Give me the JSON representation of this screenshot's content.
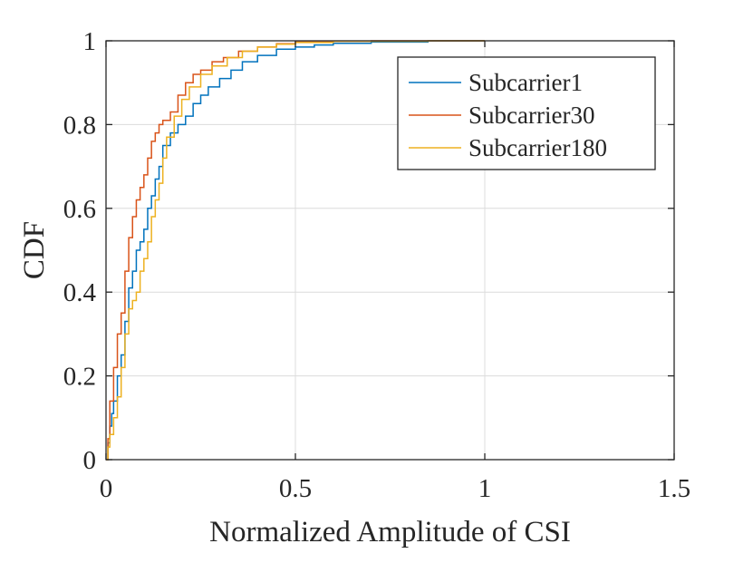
{
  "chart_data": {
    "type": "line",
    "step": true,
    "title": "",
    "xlabel": "Normalized Amplitude of CSI",
    "ylabel": "CDF",
    "xlim": [
      0,
      1.5
    ],
    "ylim": [
      0,
      1
    ],
    "xticks": [
      0,
      0.5,
      1,
      1.5
    ],
    "xtick_labels": [
      "0",
      "0.5",
      "1",
      "1.5"
    ],
    "yticks": [
      0,
      0.2,
      0.4,
      0.6,
      0.8,
      1
    ],
    "ytick_labels": [
      "0",
      "0.2",
      "0.4",
      "0.6",
      "0.8",
      "1"
    ],
    "grid": true,
    "legend_position": "top-right",
    "series": [
      {
        "name": "Subcarrier1",
        "color": "#0072BD",
        "x": [
          0,
          0.005,
          0.01,
          0.015,
          0.02,
          0.03,
          0.04,
          0.05,
          0.06,
          0.07,
          0.08,
          0.09,
          0.1,
          0.11,
          0.12,
          0.13,
          0.14,
          0.15,
          0.17,
          0.19,
          0.21,
          0.23,
          0.25,
          0.27,
          0.3,
          0.33,
          0.36,
          0.4,
          0.45,
          0.5,
          0.55,
          0.6,
          0.7,
          0.85,
          1.0
        ],
        "y": [
          0,
          0.04,
          0.08,
          0.11,
          0.14,
          0.2,
          0.25,
          0.33,
          0.41,
          0.45,
          0.5,
          0.52,
          0.55,
          0.6,
          0.63,
          0.67,
          0.7,
          0.75,
          0.78,
          0.8,
          0.82,
          0.85,
          0.87,
          0.89,
          0.91,
          0.93,
          0.95,
          0.965,
          0.98,
          0.985,
          0.99,
          0.994,
          0.997,
          1.0,
          1.0
        ]
      },
      {
        "name": "Subcarrier30",
        "color": "#D95319",
        "x": [
          0,
          0.005,
          0.01,
          0.02,
          0.03,
          0.04,
          0.05,
          0.06,
          0.07,
          0.08,
          0.09,
          0.1,
          0.11,
          0.12,
          0.13,
          0.14,
          0.15,
          0.17,
          0.19,
          0.21,
          0.23,
          0.25,
          0.28,
          0.31,
          0.35,
          0.4,
          0.45,
          0.5,
          0.6,
          0.7,
          0.85
        ],
        "y": [
          0,
          0.05,
          0.14,
          0.22,
          0.3,
          0.35,
          0.45,
          0.53,
          0.58,
          0.62,
          0.65,
          0.68,
          0.72,
          0.76,
          0.78,
          0.8,
          0.81,
          0.83,
          0.87,
          0.9,
          0.92,
          0.93,
          0.95,
          0.96,
          0.975,
          0.985,
          0.993,
          0.997,
          0.999,
          1.0,
          1.0
        ]
      },
      {
        "name": "Subcarrier180",
        "color": "#EDB120",
        "x": [
          0,
          0.005,
          0.01,
          0.02,
          0.03,
          0.04,
          0.05,
          0.06,
          0.07,
          0.08,
          0.09,
          0.1,
          0.11,
          0.12,
          0.13,
          0.14,
          0.15,
          0.16,
          0.18,
          0.2,
          0.22,
          0.25,
          0.28,
          0.32,
          0.36,
          0.4,
          0.45,
          0.5,
          0.6,
          0.85
        ],
        "y": [
          0,
          0.03,
          0.06,
          0.1,
          0.15,
          0.22,
          0.3,
          0.36,
          0.38,
          0.4,
          0.45,
          0.48,
          0.52,
          0.58,
          0.62,
          0.66,
          0.72,
          0.77,
          0.82,
          0.86,
          0.89,
          0.92,
          0.94,
          0.96,
          0.975,
          0.985,
          0.992,
          0.996,
          0.999,
          1.0
        ]
      }
    ]
  }
}
